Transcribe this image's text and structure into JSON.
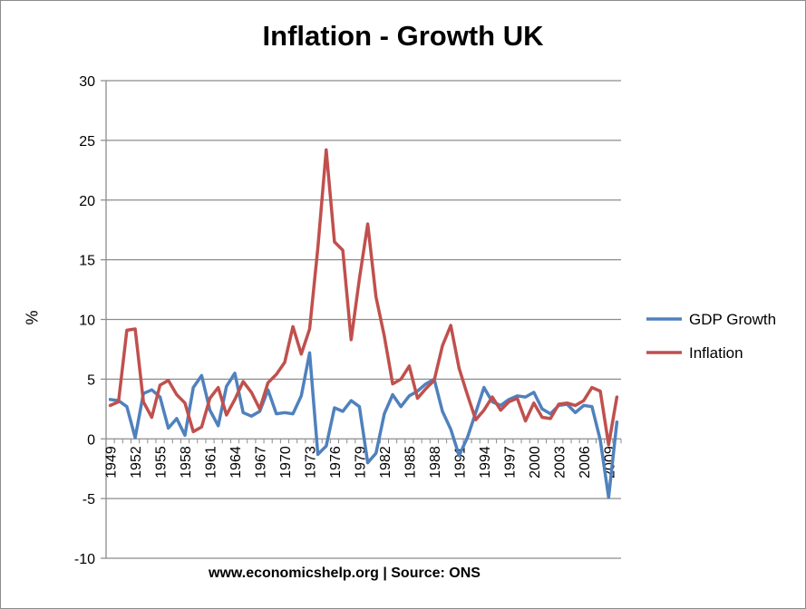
{
  "chart_data": {
    "type": "line",
    "title": "Inflation  - Growth UK",
    "subtitle": "",
    "xlabel": "",
    "ylabel": "%",
    "footer": "www.economicshelp.org | Source: ONS",
    "ylim": [
      -10,
      30
    ],
    "yticks": [
      "30",
      "25",
      "20",
      "15",
      "10",
      "5",
      "0",
      "-5",
      "-10"
    ],
    "x": [
      1949,
      1950,
      1951,
      1952,
      1953,
      1954,
      1955,
      1956,
      1957,
      1958,
      1959,
      1960,
      1961,
      1962,
      1963,
      1964,
      1965,
      1966,
      1967,
      1968,
      1969,
      1970,
      1971,
      1972,
      1973,
      1974,
      1975,
      1976,
      1977,
      1978,
      1979,
      1980,
      1981,
      1982,
      1983,
      1984,
      1985,
      1986,
      1987,
      1988,
      1989,
      1990,
      1991,
      1992,
      1993,
      1994,
      1995,
      1996,
      1997,
      1998,
      1999,
      2000,
      2001,
      2002,
      2003,
      2004,
      2005,
      2006,
      2007,
      2008,
      2009,
      2010
    ],
    "xtick_labels": [
      "1949",
      "1952",
      "1955",
      "1958",
      "1961",
      "1964",
      "1967",
      "1970",
      "1973",
      "1976",
      "1979",
      "1982",
      "1985",
      "1988",
      "1991",
      "1994",
      "1997",
      "2000",
      "2003",
      "2006",
      "2009"
    ],
    "grid": true,
    "legend_position": "right",
    "series": [
      {
        "name": "GDP Growth",
        "color": "#4F81BD",
        "values": [
          3.3,
          3.2,
          2.7,
          0.1,
          3.8,
          4.1,
          3.5,
          0.9,
          1.7,
          0.3,
          4.3,
          5.3,
          2.4,
          1.1,
          4.4,
          5.5,
          2.2,
          1.9,
          2.3,
          4.1,
          2.1,
          2.2,
          2.1,
          3.6,
          7.2,
          -1.3,
          -0.6,
          2.6,
          2.3,
          3.2,
          2.7,
          -2.0,
          -1.2,
          2.1,
          3.7,
          2.7,
          3.6,
          4.0,
          4.6,
          5.0,
          2.3,
          0.8,
          -1.4,
          0.1,
          2.2,
          4.3,
          3.1,
          2.8,
          3.3,
          3.6,
          3.5,
          3.9,
          2.5,
          2.1,
          2.8,
          2.9,
          2.2,
          2.8,
          2.7,
          -0.1,
          -4.9,
          1.4
        ]
      },
      {
        "name": "Inflation",
        "color": "#C0504D",
        "values": [
          2.8,
          3.1,
          9.1,
          9.2,
          3.1,
          1.8,
          4.5,
          4.9,
          3.7,
          3.0,
          0.6,
          1.0,
          3.4,
          4.3,
          2.0,
          3.3,
          4.8,
          3.9,
          2.5,
          4.7,
          5.4,
          6.4,
          9.4,
          7.1,
          9.2,
          16.0,
          24.2,
          16.5,
          15.8,
          8.3,
          13.4,
          18.0,
          11.9,
          8.6,
          4.6,
          5.0,
          6.1,
          3.4,
          4.2,
          4.9,
          7.8,
          9.5,
          5.9,
          3.7,
          1.6,
          2.4,
          3.5,
          2.4,
          3.1,
          3.4,
          1.5,
          3.0,
          1.8,
          1.7,
          2.9,
          3.0,
          2.8,
          3.2,
          4.3,
          4.0,
          -0.5,
          3.5
        ]
      }
    ]
  }
}
